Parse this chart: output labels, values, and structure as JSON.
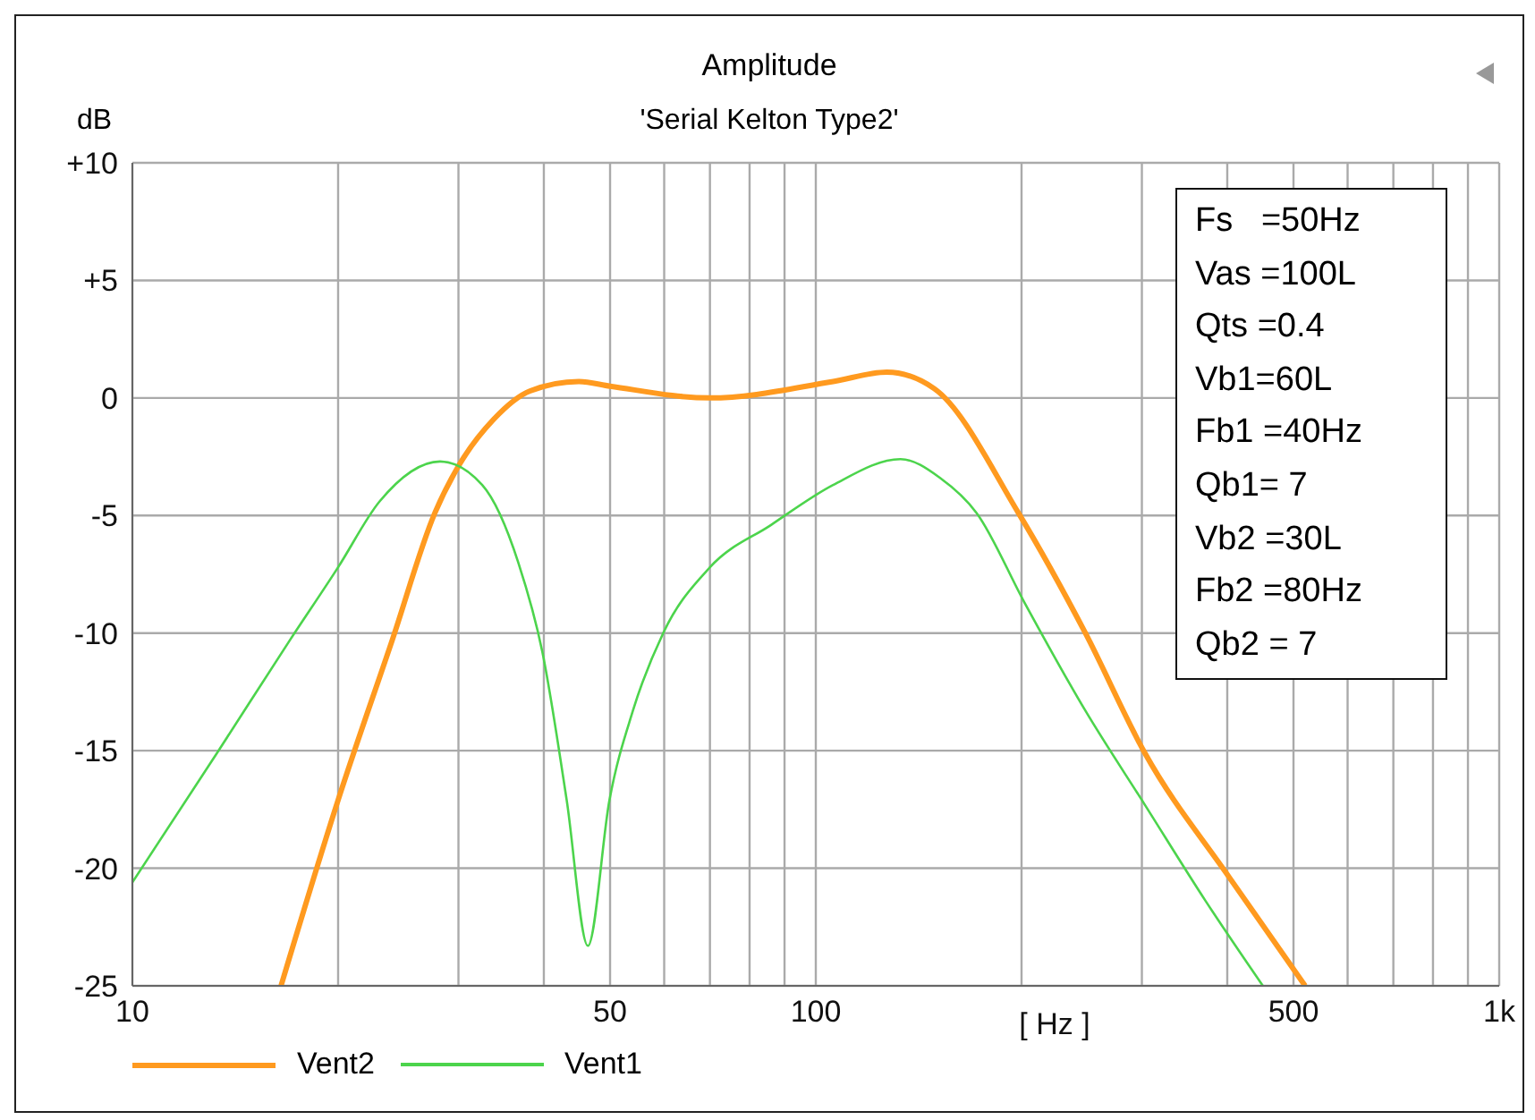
{
  "chart_data": {
    "type": "line",
    "title": "Amplitude",
    "subtitle": "'Serial Kelton Type2'",
    "xlabel": "[ Hz ]",
    "ylabel": "dB",
    "log": "x",
    "grid": true,
    "legend": "bottom left",
    "marker": "none",
    "line_style": "solid",
    "xlim": [
      10,
      1000
    ],
    "xticks": [
      10,
      {
        "value": 20,
        "label": null
      },
      {
        "value": 30,
        "label": null
      },
      {
        "value": 40,
        "label": null
      },
      50,
      {
        "value": 60,
        "label": null
      },
      {
        "value": 70,
        "label": null
      },
      {
        "value": 80,
        "label": null
      },
      {
        "value": 90,
        "label": null
      },
      100,
      {
        "value": 200,
        "label": null
      },
      {
        "value": 300,
        "label": null
      },
      {
        "value": 400,
        "label": null
      },
      500,
      {
        "value": 600,
        "label": null
      },
      {
        "value": 700,
        "label": null
      },
      {
        "value": 800,
        "label": null
      },
      {
        "value": 900,
        "label": null
      },
      {
        "value": 1000,
        "label": "1k"
      }
    ],
    "ylim": [
      -25,
      10
    ],
    "yticks": [
      {
        "value": 10,
        "label": "+10"
      },
      {
        "value": 5,
        "label": "+5"
      },
      0,
      -5,
      -10,
      -15,
      -20,
      -25
    ],
    "series": [
      {
        "name": "Vent2",
        "color": "#ff9a1f",
        "x": [
          16.5,
          20,
          24,
          27.7,
          30,
          33.8,
          38.2,
          45,
          50,
          70,
          106,
          127,
          149,
          198,
          248,
          303,
          403,
          520
        ],
        "values": [
          -25,
          -17.1,
          -10.3,
          -4.9,
          -2.9,
          -0.9,
          0.3,
          0.7,
          0.5,
          0,
          0.7,
          1.1,
          0.4,
          -4.9,
          -10,
          -15.1,
          -20.4,
          -25
        ]
      },
      {
        "name": "Vent1",
        "color": "#4cd44c",
        "x": [
          10,
          13.3,
          17,
          20,
          23,
          28.2,
          32.5,
          36.7,
          39.8,
          43.2,
          46.4,
          49.9,
          54,
          59.8,
          70,
          86,
          106,
          133,
          152,
          172,
          202,
          248,
          303,
          372,
          451
        ],
        "values": [
          -20.6,
          -15.1,
          -10.3,
          -7.2,
          -4.4,
          -2.7,
          -3.7,
          -7,
          -10.8,
          -17.1,
          -23.3,
          -17.1,
          -13.3,
          -10,
          -7.2,
          -5.4,
          -3.7,
          -2.6,
          -3.4,
          -4.9,
          -8.7,
          -13.3,
          -17.3,
          -21.4,
          -25
        ]
      }
    ],
    "annotations": [
      "Fs   =50Hz",
      "Vas =100L",
      "Qts =0.4",
      "Vb1=60L",
      "Fb1 =40Hz",
      "Qb1= 7",
      "Vb2 =30L",
      "Fb2 =80Hz",
      "Qb2 = 7"
    ]
  }
}
